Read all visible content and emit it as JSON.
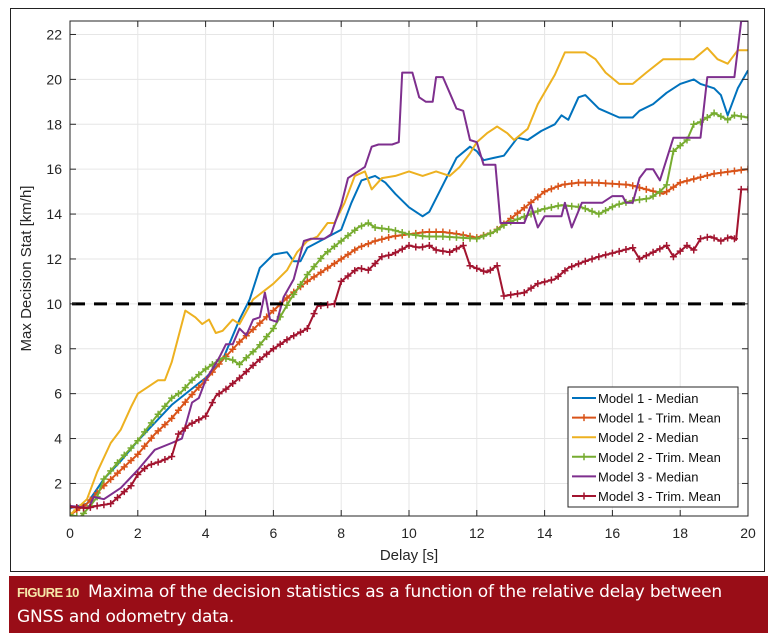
{
  "chart_data": {
    "type": "line",
    "title": "",
    "xlabel": "Delay [s]",
    "ylabel": "Max Decision Stat [km/h]",
    "xlim": [
      0,
      20
    ],
    "ylim": [
      0.55,
      22.6
    ],
    "xticks": [
      0,
      2,
      4,
      6,
      8,
      10,
      12,
      14,
      16,
      18,
      20
    ],
    "yticks": [
      2,
      4,
      6,
      8,
      10,
      12,
      14,
      16,
      18,
      20,
      22
    ],
    "xtick_labels": [
      "0",
      "2",
      "4",
      "6",
      "8",
      "10",
      "12",
      "14",
      "16",
      "18",
      "20"
    ],
    "ytick_labels": [
      "2",
      "4",
      "6",
      "8",
      "10",
      "12",
      "14",
      "16",
      "18",
      "20",
      "22"
    ],
    "grid": true,
    "legend_position": "bottom-right",
    "threshold": {
      "y": 10,
      "style": "dashed",
      "color": "#000000"
    },
    "series": [
      {
        "name": "Model 1 - Median",
        "color": "#0072BD",
        "marker": "none",
        "x": [
          0,
          0.5,
          1,
          1.5,
          2,
          2.5,
          3,
          3.5,
          4,
          4.5,
          5,
          5.3,
          5.6,
          6,
          6.4,
          6.6,
          6.8,
          7,
          7.5,
          8,
          8.3,
          8.6,
          9,
          9.3,
          9.6,
          10,
          10.4,
          10.6,
          11,
          11.4,
          11.8,
          12,
          12.2,
          12.5,
          12.8,
          13.2,
          13.5,
          13.9,
          14.3,
          14.5,
          14.7,
          15,
          15.2,
          15.6,
          16.2,
          16.6,
          16.8,
          17.2,
          17.6,
          18,
          18.4,
          18.6,
          19,
          19.2,
          19.4,
          19.7,
          20
        ],
        "y": [
          0.9,
          1.1,
          2.2,
          3.0,
          3.9,
          4.7,
          5.5,
          6.1,
          6.7,
          7.5,
          9.3,
          10.2,
          11.6,
          12.2,
          12.3,
          11.9,
          11.9,
          12.5,
          12.9,
          13.3,
          14.5,
          15.5,
          15.7,
          15.4,
          14.9,
          14.3,
          13.9,
          14.1,
          15.3,
          16.5,
          17.0,
          16.8,
          16.4,
          16.5,
          16.6,
          17.4,
          17.3,
          17.7,
          18.0,
          18.4,
          18.2,
          19.2,
          19.3,
          18.7,
          18.3,
          18.3,
          18.6,
          18.9,
          19.4,
          19.8,
          20.0,
          19.8,
          19.6,
          19.3,
          18.4,
          19.6,
          20.4
        ]
      },
      {
        "name": "Model 1 - Trim. Mean",
        "color": "#D95319",
        "marker": "+",
        "x": [
          0,
          0.5,
          1,
          1.5,
          2,
          2.5,
          3,
          3.5,
          4,
          4.5,
          5,
          5.5,
          6,
          6.5,
          7,
          7.5,
          8,
          8.5,
          9,
          9.5,
          10,
          10.5,
          11,
          11.5,
          12,
          12.5,
          13,
          13.5,
          14,
          14.5,
          15,
          15.5,
          16,
          16.5,
          17,
          17.5,
          18,
          18.5,
          19,
          19.5,
          20
        ],
        "y": [
          0.6,
          1.1,
          1.9,
          2.6,
          3.3,
          4.2,
          4.9,
          5.8,
          6.6,
          7.5,
          8.3,
          9.0,
          9.7,
          10.4,
          11.0,
          11.5,
          12.0,
          12.5,
          12.8,
          13.0,
          13.1,
          13.2,
          13.2,
          13.1,
          12.95,
          13.2,
          13.8,
          14.4,
          15.0,
          15.3,
          15.4,
          15.4,
          15.35,
          15.3,
          15.1,
          14.9,
          15.4,
          15.6,
          15.8,
          15.9,
          16.0
        ]
      },
      {
        "name": "Model 2 - Median",
        "color": "#EDB120",
        "marker": "none",
        "x": [
          0,
          0.5,
          0.8,
          1.2,
          1.5,
          1.8,
          2,
          2.3,
          2.6,
          2.8,
          3,
          3.4,
          3.7,
          3.9,
          4.1,
          4.3,
          4.5,
          4.8,
          5,
          5.4,
          6,
          6.4,
          6.7,
          7,
          7.3,
          7.6,
          7.8,
          8.1,
          8.4,
          8.7,
          8.9,
          9.2,
          9.6,
          10,
          10.4,
          10.8,
          11.2,
          11.5,
          11.8,
          12,
          12.3,
          12.6,
          12.9,
          13.1,
          13.5,
          13.8,
          14.3,
          14.6,
          15.2,
          15.5,
          15.8,
          16.2,
          16.6,
          17,
          17.5,
          17.9,
          18.4,
          18.8,
          19.1,
          19.4,
          19.7,
          20
        ],
        "y": [
          0.6,
          1.3,
          2.5,
          3.8,
          4.4,
          5.4,
          6.0,
          6.3,
          6.6,
          6.6,
          7.4,
          9.7,
          9.4,
          9.1,
          9.3,
          8.7,
          8.8,
          9.3,
          9.1,
          10.2,
          10.9,
          11.5,
          12.3,
          12.8,
          13.0,
          13.6,
          13.6,
          14.5,
          15.7,
          15.9,
          15.1,
          15.6,
          15.7,
          15.9,
          15.7,
          15.9,
          15.7,
          16.1,
          16.7,
          17.2,
          17.6,
          17.9,
          17.6,
          17.3,
          17.8,
          18.9,
          20.2,
          21.2,
          21.2,
          20.9,
          20.3,
          19.8,
          19.8,
          20.3,
          20.9,
          20.9,
          20.9,
          21.4,
          20.9,
          20.7,
          21.3,
          21.3
        ]
      },
      {
        "name": "Model 2 - Trim. Mean",
        "color": "#77AC30",
        "marker": "+",
        "x": [
          0,
          0.3,
          0.6,
          0.8,
          1,
          1.5,
          2,
          2.5,
          3,
          3.3,
          3.6,
          4,
          4.5,
          4.8,
          5,
          5.2,
          5.5,
          6,
          6.5,
          7,
          7.5,
          8,
          8.5,
          8.8,
          9,
          9.5,
          10,
          10.5,
          11,
          11.5,
          12,
          12.5,
          12.9,
          13.6,
          13.9,
          14.5,
          15.1,
          15.6,
          16.1,
          16.6,
          17.1,
          17.4,
          17.6,
          17.8,
          18.2,
          18.4,
          18.6,
          19,
          19.4,
          19.6,
          20
        ],
        "y": [
          0.6,
          0.5,
          1.0,
          1.4,
          2.2,
          3.1,
          3.9,
          4.9,
          5.8,
          6.1,
          6.6,
          7.1,
          7.6,
          7.5,
          7.3,
          7.6,
          8.0,
          8.9,
          10.2,
          11.3,
          12.2,
          12.8,
          13.4,
          13.6,
          13.4,
          13.3,
          13.1,
          13.0,
          13.0,
          12.95,
          12.9,
          13.2,
          13.6,
          14.0,
          14.2,
          14.4,
          14.3,
          14.0,
          14.4,
          14.6,
          14.7,
          15.0,
          15.3,
          16.8,
          17.3,
          18.0,
          18.1,
          18.5,
          18.2,
          18.4,
          18.3
        ]
      },
      {
        "name": "Model 3 - Median",
        "color": "#7E2F8E",
        "marker": "none",
        "x": [
          0,
          0.3,
          0.55,
          0.7,
          1,
          1.5,
          2,
          2.5,
          3,
          3.3,
          3.6,
          3.8,
          4,
          4.4,
          4.6,
          4.8,
          5,
          5.2,
          5.4,
          5.6,
          5.75,
          5.9,
          6.1,
          6.3,
          6.6,
          6.9,
          7.1,
          7.5,
          7.7,
          8,
          8.2,
          8.5,
          8.7,
          8.9,
          9.1,
          9.5,
          9.7,
          9.8,
          10.1,
          10.3,
          10.5,
          10.7,
          10.8,
          11,
          11.2,
          11.4,
          11.6,
          11.8,
          12,
          12.2,
          12.55,
          12.7,
          13,
          13.4,
          13.6,
          13.8,
          14,
          14.5,
          14.6,
          14.8,
          15.1,
          15.7,
          16,
          16.3,
          16.4,
          16.6,
          16.8,
          17.0,
          17.2,
          17.4,
          17.8,
          18.6,
          18.8,
          19.6,
          19.8,
          20
        ],
        "y": [
          1.0,
          0.95,
          0.9,
          1.4,
          1.3,
          1.8,
          2.6,
          3.5,
          3.8,
          4.0,
          5.6,
          5.8,
          6.6,
          7.6,
          8.2,
          8.2,
          8.9,
          8.6,
          9.3,
          9.4,
          10.5,
          9.3,
          9.2,
          10.3,
          11.1,
          12.8,
          12.9,
          12.9,
          13.1,
          14.4,
          15.6,
          15.9,
          16.1,
          17.0,
          17.1,
          17.1,
          17.2,
          20.3,
          20.3,
          19.2,
          19.0,
          19.0,
          20.1,
          20.1,
          19.4,
          18.7,
          18.6,
          17.3,
          17.2,
          16.2,
          16.2,
          13.6,
          13.6,
          13.6,
          14.4,
          13.4,
          13.9,
          13.9,
          14.5,
          13.4,
          14.5,
          14.5,
          14.8,
          14.8,
          14.5,
          14.5,
          15.6,
          16.0,
          16.0,
          15.5,
          17.4,
          17.4,
          20.1,
          20.1,
          22.6,
          22.6
        ]
      },
      {
        "name": "Model 3 - Trim. Mean",
        "color": "#A2142F",
        "marker": "+",
        "x": [
          0,
          0.5,
          0.8,
          1.2,
          1.5,
          1.8,
          2,
          2.3,
          2.7,
          3,
          3.2,
          3.5,
          4,
          4.3,
          4.6,
          5,
          5.5,
          6,
          6.5,
          7,
          7.3,
          7.8,
          8,
          8.5,
          8.8,
          9.2,
          9.5,
          10,
          10.3,
          10.6,
          10.8,
          11.2,
          11.6,
          11.8,
          12.3,
          12.6,
          12.8,
          13.4,
          13.8,
          14.3,
          14.7,
          15.2,
          15.6,
          16.1,
          16.6,
          16.8,
          17.2,
          17.6,
          17.8,
          18.2,
          18.4,
          18.6,
          18.9,
          19.2,
          19.5,
          19.65,
          19.8,
          20
        ],
        "y": [
          0.95,
          0.9,
          1.0,
          1.1,
          1.5,
          1.9,
          2.4,
          2.8,
          3.0,
          3.2,
          4.2,
          4.6,
          5.0,
          5.9,
          6.2,
          6.7,
          7.4,
          8.0,
          8.5,
          8.9,
          9.9,
          10.0,
          11.0,
          11.6,
          11.5,
          12.1,
          12.2,
          12.6,
          12.5,
          12.6,
          12.4,
          12.3,
          12.6,
          11.7,
          11.4,
          11.7,
          10.35,
          10.5,
          10.9,
          11.1,
          11.6,
          11.9,
          12.1,
          12.3,
          12.5,
          12.0,
          12.3,
          12.6,
          12.1,
          12.6,
          12.4,
          12.9,
          13.0,
          12.8,
          13.0,
          12.85,
          15.1,
          15.1
        ]
      }
    ]
  },
  "caption": {
    "label": "FIGURE 10",
    "text": "Maxima of the decision statistics as a function of the relative delay between GNSS and odometry data."
  }
}
